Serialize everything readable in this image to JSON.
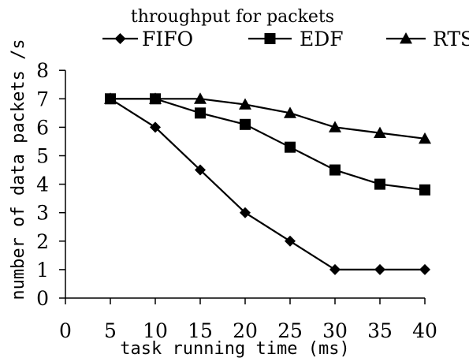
{
  "chart_data": {
    "type": "line",
    "title": "throughput for packets",
    "xlabel": "task running time (ms)",
    "ylabel": "number of data packets /s",
    "x": [
      5,
      10,
      15,
      20,
      25,
      30,
      35,
      40
    ],
    "xticks": [
      "0",
      "5",
      "10",
      "15",
      "20",
      "25",
      "30",
      "35",
      "40"
    ],
    "yticks": [
      "0",
      "1",
      "2",
      "3",
      "4",
      "5",
      "6",
      "7",
      "8"
    ],
    "xlim": [
      0,
      40
    ],
    "ylim": [
      0,
      8
    ],
    "grid": false,
    "legend_position": "top",
    "series": [
      {
        "name": "FIFO",
        "marker": "diamond",
        "values": [
          7,
          6,
          4.5,
          3,
          2,
          1,
          1,
          1
        ]
      },
      {
        "name": "EDF",
        "marker": "square",
        "values": [
          7,
          7,
          6.5,
          6.1,
          5.3,
          4.5,
          4,
          3.8
        ]
      },
      {
        "name": "RTS",
        "marker": "triangle",
        "values": [
          7,
          7,
          7,
          6.8,
          6.5,
          6,
          5.8,
          5.6
        ]
      }
    ],
    "line_color": "#000000"
  }
}
